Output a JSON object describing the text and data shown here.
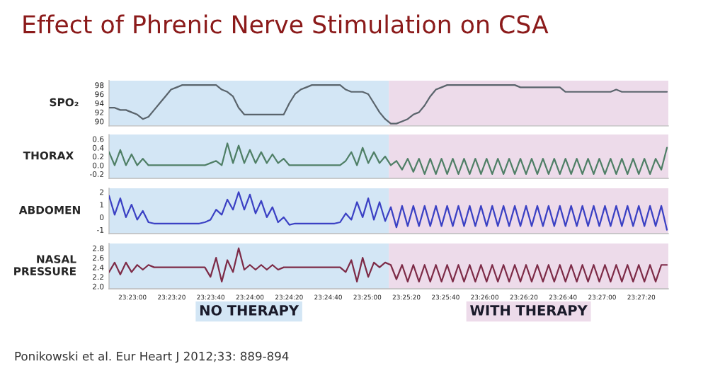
{
  "chart_data": [
    {
      "type": "line",
      "title": "Effect of Phrenic Nerve Stimulation on CSA",
      "ylabel": "SPO₂",
      "tick_labels": "y",
      "x": [
        23.38,
        23.3808,
        23.3816,
        23.3824,
        23.3832,
        23.384,
        23.3848,
        23.3856,
        23.3864,
        23.3872,
        23.388,
        23.3888,
        23.3896,
        23.3904,
        23.3912,
        23.392,
        23.3928,
        23.3936,
        23.3944,
        23.3952,
        23.396,
        23.3968,
        23.3976,
        23.3984,
        23.3992,
        23.4,
        23.4008,
        23.4016,
        23.4024,
        23.4032,
        23.404,
        23.4048,
        23.4056,
        23.4064,
        23.4072,
        23.408,
        23.4088,
        23.4096,
        23.4104,
        23.4112,
        23.412,
        23.4128,
        23.4136,
        23.4144,
        23.4152,
        23.416,
        23.4168,
        23.4176,
        23.4184,
        23.4192,
        23.42,
        23.4208,
        23.4216,
        23.4224,
        23.4232,
        23.424,
        23.4248,
        23.4256,
        23.4264,
        23.4272,
        23.428,
        23.4288,
        23.4296,
        23.4304,
        23.4312,
        23.432,
        23.4328,
        23.4336,
        23.4344,
        23.4352,
        23.436,
        23.4368,
        23.4376,
        23.4384,
        23.4392,
        23.44,
        23.4408,
        23.4416,
        23.4424,
        23.4432,
        23.444,
        23.4448,
        23.4456,
        23.4464,
        23.4472,
        23.448,
        23.4488,
        23.4496,
        23.4504,
        23.4512,
        23.452,
        23.4528,
        23.4536,
        23.4544,
        23.4552,
        23.456,
        23.4568,
        23.4576,
        23.4584,
        23.4592
      ],
      "series": [
        {
          "color": "#5a646c",
          "values": [
            93,
            93,
            92.5,
            92.5,
            92,
            91.5,
            90.5,
            91,
            92.5,
            94,
            95.5,
            97,
            97.5,
            98,
            98,
            98,
            98,
            98,
            98,
            98,
            97,
            96.5,
            95.5,
            93,
            91.5,
            91.5,
            91.5,
            91.5,
            91.5,
            91.5,
            91.5,
            91.5,
            94,
            96,
            97,
            97.5,
            98,
            98,
            98,
            98,
            98,
            98,
            97,
            96.5,
            96.5,
            96.5,
            96,
            94,
            92,
            90.5,
            89.5,
            89.5,
            90,
            90.5,
            91.5,
            92,
            93.5,
            95.5,
            97,
            97.5,
            98,
            98,
            98,
            98,
            98,
            98,
            98,
            98,
            98,
            98,
            98,
            98,
            98,
            97.5,
            97.5,
            97.5,
            97.5,
            97.5,
            97.5,
            97.5,
            97.5,
            96.5,
            96.5,
            96.5,
            96.5,
            96.5,
            96.5,
            96.5,
            96.5,
            96.5,
            97,
            96.5,
            96.5,
            96.5,
            96.5,
            96.5,
            96.5,
            96.5,
            96.5,
            96.5
          ]
        }
      ],
      "xlim": [
        23.38,
        23.4594
      ],
      "ylim": [
        89,
        99
      ],
      "yticks": [
        90,
        92,
        94,
        96,
        98
      ],
      "bands": [
        {
          "axis": "x",
          "from": 23.38,
          "to": 23.41972,
          "color": "#d3e6f5"
        },
        {
          "axis": "x",
          "from": 23.41972,
          "to": 23.4594,
          "color": "#eddbea"
        }
      ]
    },
    {
      "type": "line",
      "ylabel": "THORAX",
      "tick_labels": "y",
      "x": [
        23.38,
        23.3808,
        23.3816,
        23.3824,
        23.3832,
        23.384,
        23.3848,
        23.3856,
        23.3864,
        23.3872,
        23.388,
        23.3888,
        23.3896,
        23.3904,
        23.3912,
        23.392,
        23.3928,
        23.3936,
        23.3944,
        23.3952,
        23.396,
        23.3968,
        23.3976,
        23.3984,
        23.3992,
        23.4,
        23.4008,
        23.4016,
        23.4024,
        23.4032,
        23.404,
        23.4048,
        23.4056,
        23.4064,
        23.4072,
        23.408,
        23.4088,
        23.4096,
        23.4104,
        23.4112,
        23.412,
        23.4128,
        23.4136,
        23.4144,
        23.4152,
        23.416,
        23.4168,
        23.4176,
        23.4184,
        23.4192,
        23.42,
        23.4208,
        23.4216,
        23.4224,
        23.4232,
        23.424,
        23.4248,
        23.4256,
        23.4264,
        23.4272,
        23.428,
        23.4288,
        23.4296,
        23.4304,
        23.4312,
        23.432,
        23.4328,
        23.4336,
        23.4344,
        23.4352,
        23.436,
        23.4368,
        23.4376,
        23.4384,
        23.4392,
        23.44,
        23.4408,
        23.4416,
        23.4424,
        23.4432,
        23.444,
        23.4448,
        23.4456,
        23.4464,
        23.4472,
        23.448,
        23.4488,
        23.4496,
        23.4504,
        23.4512,
        23.452,
        23.4528,
        23.4536,
        23.4544,
        23.4552,
        23.456,
        23.4568,
        23.4576,
        23.4584,
        23.4592
      ],
      "series": [
        {
          "color": "#4f7f66",
          "values": [
            0.3,
            0,
            0.35,
            0,
            0.25,
            0,
            0.15,
            0,
            0,
            0,
            0,
            0,
            0,
            0,
            0,
            0,
            0,
            0,
            0.05,
            0.1,
            0,
            0.5,
            0.05,
            0.45,
            0.05,
            0.35,
            0.05,
            0.3,
            0.05,
            0.25,
            0.05,
            0.15,
            0,
            0,
            0,
            0,
            0,
            0,
            0,
            0,
            0,
            0,
            0.1,
            0.3,
            0,
            0.4,
            0.05,
            0.3,
            0.05,
            0.2,
            0,
            0.1,
            -0.1,
            0.15,
            -0.15,
            0.15,
            -0.2,
            0.15,
            -0.2,
            0.15,
            -0.2,
            0.15,
            -0.2,
            0.15,
            -0.2,
            0.15,
            -0.2,
            0.15,
            -0.2,
            0.15,
            -0.2,
            0.15,
            -0.2,
            0.15,
            -0.2,
            0.15,
            -0.2,
            0.15,
            -0.2,
            0.15,
            -0.2,
            0.15,
            -0.2,
            0.15,
            -0.2,
            0.15,
            -0.2,
            0.15,
            -0.2,
            0.15,
            -0.2,
            0.15,
            -0.2,
            0.15,
            -0.2,
            0.15,
            -0.2,
            0.15,
            -0.1,
            0.4
          ]
        }
      ],
      "xlim": [
        23.38,
        23.4594
      ],
      "ylim": [
        -0.3,
        0.7
      ],
      "yticks": [
        {
          "value": -0.2,
          "label": "-0.2"
        },
        {
          "value": 0,
          "label": "0.0"
        },
        0.2,
        0.4,
        0.6
      ],
      "bands": [
        {
          "axis": "x",
          "from": 23.38,
          "to": 23.41972,
          "color": "#d3e6f5"
        },
        {
          "axis": "x",
          "from": 23.41972,
          "to": 23.4594,
          "color": "#eddbea"
        }
      ]
    },
    {
      "type": "line",
      "ylabel": "ABDOMEN",
      "tick_labels": "y",
      "x": [
        23.38,
        23.3808,
        23.3816,
        23.3824,
        23.3832,
        23.384,
        23.3848,
        23.3856,
        23.3864,
        23.3872,
        23.388,
        23.3888,
        23.3896,
        23.3904,
        23.3912,
        23.392,
        23.3928,
        23.3936,
        23.3944,
        23.3952,
        23.396,
        23.3968,
        23.3976,
        23.3984,
        23.3992,
        23.4,
        23.4008,
        23.4016,
        23.4024,
        23.4032,
        23.404,
        23.4048,
        23.4056,
        23.4064,
        23.4072,
        23.408,
        23.4088,
        23.4096,
        23.4104,
        23.4112,
        23.412,
        23.4128,
        23.4136,
        23.4144,
        23.4152,
        23.416,
        23.4168,
        23.4176,
        23.4184,
        23.4192,
        23.42,
        23.4208,
        23.4216,
        23.4224,
        23.4232,
        23.424,
        23.4248,
        23.4256,
        23.4264,
        23.4272,
        23.428,
        23.4288,
        23.4296,
        23.4304,
        23.4312,
        23.432,
        23.4328,
        23.4336,
        23.4344,
        23.4352,
        23.436,
        23.4368,
        23.4376,
        23.4384,
        23.4392,
        23.44,
        23.4408,
        23.4416,
        23.4424,
        23.4432,
        23.444,
        23.4448,
        23.4456,
        23.4464,
        23.4472,
        23.448,
        23.4488,
        23.4496,
        23.4504,
        23.4512,
        23.452,
        23.4528,
        23.4536,
        23.4544,
        23.4552,
        23.456,
        23.4568,
        23.4576,
        23.4584,
        23.4592
      ],
      "series": [
        {
          "color": "#3b41c4",
          "values": [
            1.7,
            0.2,
            1.5,
            0,
            1,
            -0.2,
            0.5,
            -0.4,
            -0.5,
            -0.5,
            -0.5,
            -0.5,
            -0.5,
            -0.5,
            -0.5,
            -0.5,
            -0.5,
            -0.4,
            -0.2,
            0.6,
            0.2,
            1.4,
            0.6,
            2,
            0.6,
            1.8,
            0.3,
            1.3,
            0,
            0.8,
            -0.4,
            0,
            -0.6,
            -0.5,
            -0.5,
            -0.5,
            -0.5,
            -0.5,
            -0.5,
            -0.5,
            -0.5,
            -0.4,
            0.3,
            -0.2,
            1.2,
            0,
            1.5,
            -0.2,
            1.2,
            -0.3,
            0.8,
            -0.8,
            0.9,
            -0.7,
            0.9,
            -0.7,
            0.9,
            -0.7,
            0.9,
            -0.7,
            0.9,
            -0.7,
            0.9,
            -0.7,
            0.9,
            -0.7,
            0.9,
            -0.7,
            0.9,
            -0.7,
            0.9,
            -0.7,
            0.9,
            -0.7,
            0.9,
            -0.7,
            0.9,
            -0.7,
            0.9,
            -0.7,
            0.9,
            -0.7,
            0.9,
            -0.7,
            0.9,
            -0.7,
            0.9,
            -0.7,
            0.9,
            -0.7,
            0.9,
            -0.7,
            0.9,
            -0.7,
            0.9,
            -0.7,
            0.9,
            -0.7,
            0.9,
            -1
          ]
        }
      ],
      "xlim": [
        23.38,
        23.4594
      ],
      "ylim": [
        -1.3,
        2.3
      ],
      "yticks": [
        -1,
        0,
        1,
        2
      ],
      "bands": [
        {
          "axis": "x",
          "from": 23.38,
          "to": 23.41972,
          "color": "#d3e6f5"
        },
        {
          "axis": "x",
          "from": 23.41972,
          "to": 23.4594,
          "color": "#eddbea"
        }
      ]
    },
    {
      "type": "line",
      "ylabel": "NASAL\nPRESSURE",
      "x": [
        23.38,
        23.3808,
        23.3816,
        23.3824,
        23.3832,
        23.384,
        23.3848,
        23.3856,
        23.3864,
        23.3872,
        23.388,
        23.3888,
        23.3896,
        23.3904,
        23.3912,
        23.392,
        23.3928,
        23.3936,
        23.3944,
        23.3952,
        23.396,
        23.3968,
        23.3976,
        23.3984,
        23.3992,
        23.4,
        23.4008,
        23.4016,
        23.4024,
        23.4032,
        23.404,
        23.4048,
        23.4056,
        23.4064,
        23.4072,
        23.408,
        23.4088,
        23.4096,
        23.4104,
        23.4112,
        23.412,
        23.4128,
        23.4136,
        23.4144,
        23.4152,
        23.416,
        23.4168,
        23.4176,
        23.4184,
        23.4192,
        23.42,
        23.4208,
        23.4216,
        23.4224,
        23.4232,
        23.424,
        23.4248,
        23.4256,
        23.4264,
        23.4272,
        23.428,
        23.4288,
        23.4296,
        23.4304,
        23.4312,
        23.432,
        23.4328,
        23.4336,
        23.4344,
        23.4352,
        23.436,
        23.4368,
        23.4376,
        23.4384,
        23.4392,
        23.44,
        23.4408,
        23.4416,
        23.4424,
        23.4432,
        23.444,
        23.4448,
        23.4456,
        23.4464,
        23.4472,
        23.448,
        23.4488,
        23.4496,
        23.4504,
        23.4512,
        23.452,
        23.4528,
        23.4536,
        23.4544,
        23.4552,
        23.456,
        23.4568,
        23.4576,
        23.4584,
        23.4592
      ],
      "series": [
        {
          "color": "#7d2b47",
          "values": [
            2.3,
            2.5,
            2.25,
            2.5,
            2.3,
            2.45,
            2.35,
            2.45,
            2.4,
            2.4,
            2.4,
            2.4,
            2.4,
            2.4,
            2.4,
            2.4,
            2.4,
            2.4,
            2.2,
            2.6,
            2.1,
            2.55,
            2.3,
            2.8,
            2.35,
            2.45,
            2.35,
            2.45,
            2.35,
            2.45,
            2.35,
            2.4,
            2.4,
            2.4,
            2.4,
            2.4,
            2.4,
            2.4,
            2.4,
            2.4,
            2.4,
            2.4,
            2.3,
            2.55,
            2.1,
            2.6,
            2.2,
            2.5,
            2.4,
            2.5,
            2.45,
            2.15,
            2.45,
            2.1,
            2.45,
            2.1,
            2.45,
            2.1,
            2.45,
            2.1,
            2.45,
            2.1,
            2.45,
            2.1,
            2.45,
            2.1,
            2.45,
            2.1,
            2.45,
            2.1,
            2.45,
            2.1,
            2.45,
            2.1,
            2.45,
            2.1,
            2.45,
            2.1,
            2.45,
            2.1,
            2.45,
            2.1,
            2.45,
            2.1,
            2.45,
            2.1,
            2.45,
            2.1,
            2.45,
            2.1,
            2.45,
            2.1,
            2.45,
            2.1,
            2.45,
            2.1,
            2.45,
            2.1,
            2.45,
            2.45
          ]
        }
      ],
      "xlim": [
        23.38,
        23.4594
      ],
      "ylim": [
        1.95,
        2.9
      ],
      "yticks": [
        {
          "value": 2.0,
          "label": "2.0"
        },
        2.2,
        2.4,
        2.6,
        {
          "value": 2.8,
          "label": "2.8"
        }
      ],
      "xticks": [
        {
          "value": 23.38333,
          "label": "23:23:00"
        },
        {
          "value": 23.38889,
          "label": "23:23:20"
        },
        {
          "value": 23.39444,
          "label": "23:23:40"
        },
        {
          "value": 23.4,
          "label": "23:24:00"
        },
        {
          "value": 23.40556,
          "label": "23:24:20"
        },
        {
          "value": 23.41111,
          "label": "23:24:40"
        },
        {
          "value": 23.41667,
          "label": "23:25:00"
        },
        {
          "value": 23.42222,
          "label": "23:25:20"
        },
        {
          "value": 23.42778,
          "label": "23:25:40"
        },
        {
          "value": 23.43333,
          "label": "23:26:00"
        },
        {
          "value": 23.43889,
          "label": "23:26:20"
        },
        {
          "value": 23.44444,
          "label": "23:26:40"
        },
        {
          "value": 23.45,
          "label": "23:27:00"
        },
        {
          "value": 23.45556,
          "label": "23:27:20"
        }
      ],
      "bands": [
        {
          "axis": "x",
          "from": 23.38,
          "to": 23.41972,
          "color": "#d3e6f5",
          "label": "NO THERAPY"
        },
        {
          "axis": "x",
          "from": 23.41972,
          "to": 23.4594,
          "color": "#eddbea",
          "label": "WITH THERAPY"
        }
      ],
      "annotations": [
        "Ponikowski et al. Eur Heart J 2012;33: 889-894"
      ]
    }
  ]
}
